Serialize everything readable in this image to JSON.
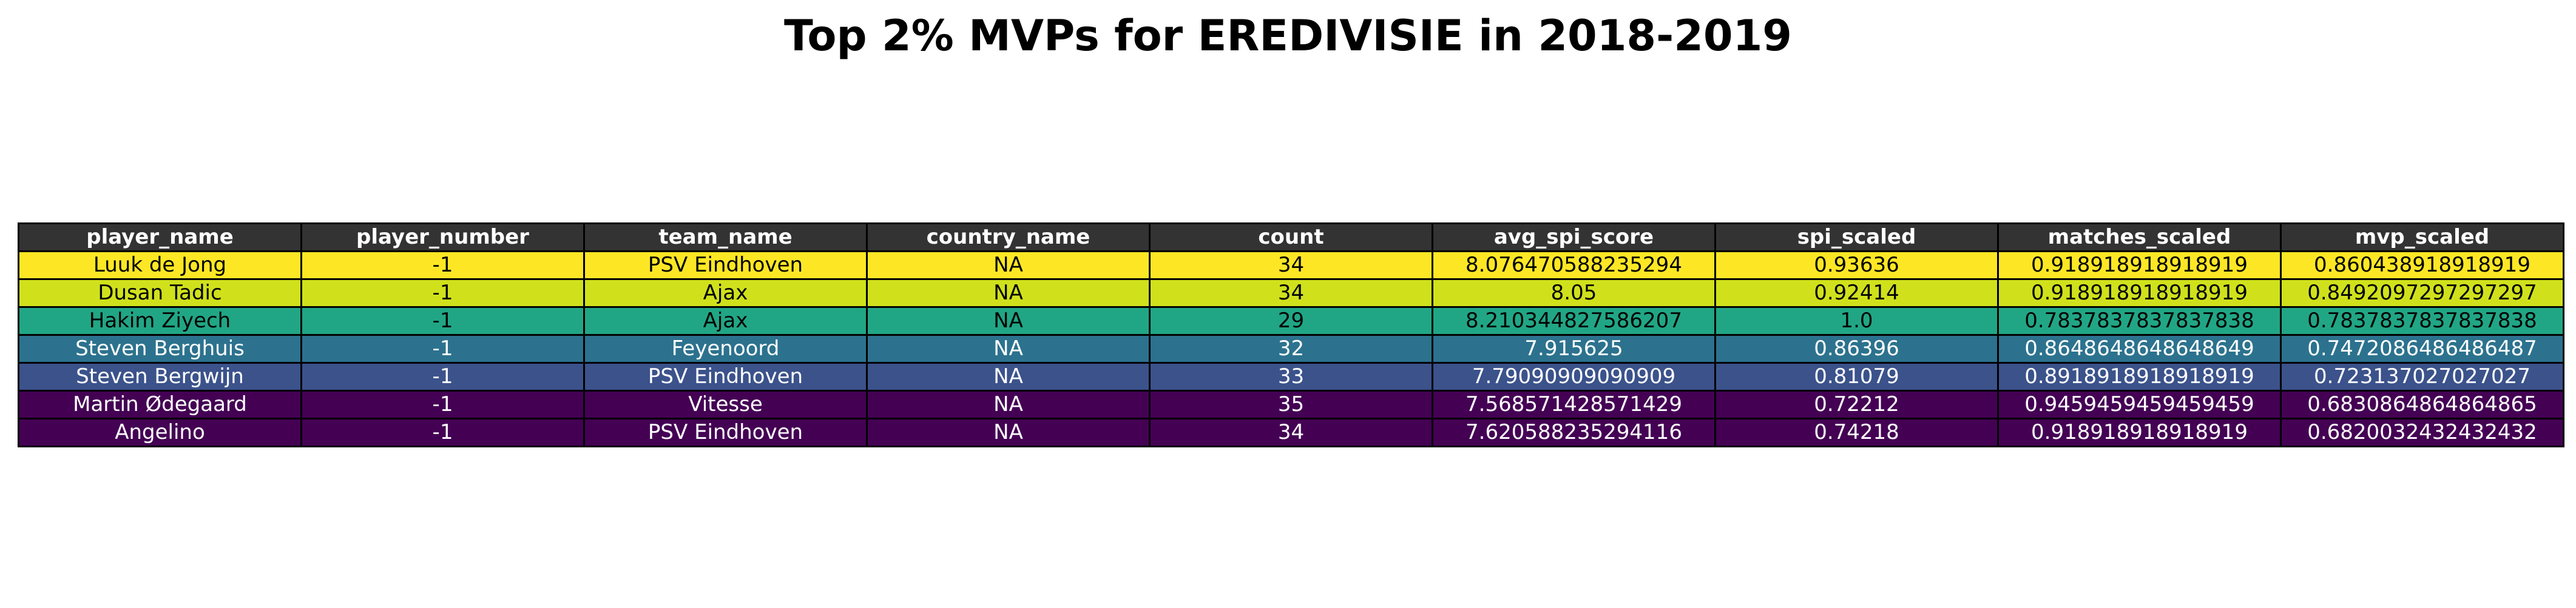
{
  "chart_data": {
    "type": "table",
    "title": "Top 2% MVPs for EREDIVISIE in 2018-2019",
    "columns": [
      "player_name",
      "player_number",
      "team_name",
      "country_name",
      "count",
      "avg_spi_score",
      "spi_scaled",
      "matches_scaled",
      "mvp_scaled"
    ],
    "rows": [
      [
        "Luuk de Jong",
        "-1",
        "PSV Eindhoven",
        "NA",
        "34",
        "8.076470588235294",
        "0.93636",
        "0.918918918918919",
        "0.860438918918919"
      ],
      [
        "Dusan Tadic",
        "-1",
        "Ajax",
        "NA",
        "34",
        "8.05",
        "0.92414",
        "0.918918918918919",
        "0.8492097297297297"
      ],
      [
        "Hakim Ziyech",
        "-1",
        "Ajax",
        "NA",
        "29",
        "8.210344827586207",
        "1.0",
        "0.7837837837837838",
        "0.7837837837837838"
      ],
      [
        "Steven Berghuis",
        "-1",
        "Feyenoord",
        "NA",
        "32",
        "7.915625",
        "0.86396",
        "0.8648648648648649",
        "0.7472086486486487"
      ],
      [
        "Steven Bergwijn",
        "-1",
        "PSV Eindhoven",
        "NA",
        "33",
        "7.79090909090909",
        "0.81079",
        "0.8918918918918919",
        "0.723137027027027"
      ],
      [
        "Martin Ødegaard",
        "-1",
        "Vitesse",
        "NA",
        "35",
        "7.568571428571429",
        "0.72212",
        "0.9459459459459459",
        "0.6830864864864865"
      ],
      [
        "Angelino",
        "-1",
        "PSV Eindhoven",
        "NA",
        "34",
        "7.620588235294116",
        "0.74218",
        "0.918918918918919",
        "0.6820032432432432"
      ]
    ],
    "header_color": "#333333",
    "header_text_color": "#ffffff",
    "row_colors": [
      "#fde725",
      "#d0e11c",
      "#21a685",
      "#2c728e",
      "#3b528b",
      "#440154",
      "#440154"
    ],
    "row_text_colors": [
      "#000000",
      "#000000",
      "#000000",
      "#ffffff",
      "#ffffff",
      "#ffffff",
      "#ffffff"
    ]
  }
}
